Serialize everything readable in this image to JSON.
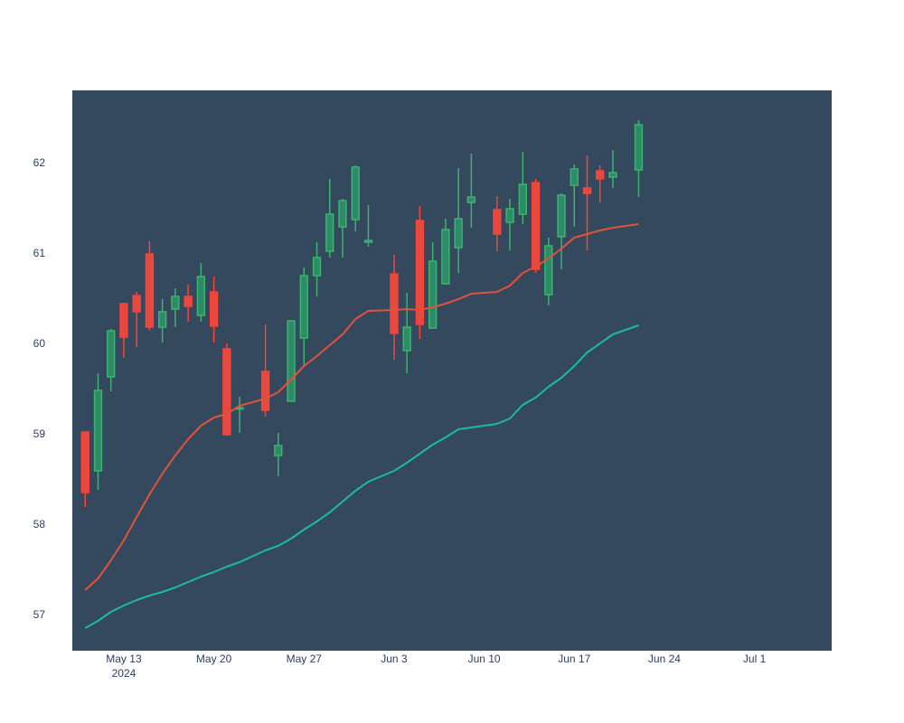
{
  "chart_data": {
    "type": "candlestick",
    "title": "",
    "xlabel": "",
    "ylabel": "",
    "ylim": [
      56.6,
      62.8
    ],
    "xlim": [
      "2024-05-09",
      "2024-07-07"
    ],
    "grid": false,
    "legend": "none",
    "colors": {
      "plot_bg": "#34495e",
      "paper_bg": "#ffffff",
      "increasing": "#2e8b68",
      "increasing_line": "#3cb371",
      "decreasing": "#e5493f",
      "decreasing_line": "#ff4136",
      "ma_short": "#e0533a",
      "ma_long": "#1abc9c",
      "tick_text": "#2a3f5f"
    },
    "y_ticks": [
      "57",
      "58",
      "59",
      "60",
      "61",
      "62"
    ],
    "x_ticks": [
      {
        "date": "2024-05-13",
        "label": "May 13",
        "sublabel": "2024"
      },
      {
        "date": "2024-05-20",
        "label": "May 20",
        "sublabel": ""
      },
      {
        "date": "2024-05-27",
        "label": "May 27",
        "sublabel": ""
      },
      {
        "date": "2024-06-03",
        "label": "Jun 3",
        "sublabel": ""
      },
      {
        "date": "2024-06-10",
        "label": "Jun 10",
        "sublabel": ""
      },
      {
        "date": "2024-06-17",
        "label": "Jun 17",
        "sublabel": ""
      },
      {
        "date": "2024-06-24",
        "label": "Jun 24",
        "sublabel": ""
      },
      {
        "date": "2024-07-01",
        "label": "Jul 1",
        "sublabel": ""
      }
    ],
    "candles": [
      {
        "date": "2024-05-10",
        "open": 59.02,
        "high": 59.02,
        "low": 58.19,
        "close": 58.35
      },
      {
        "date": "2024-05-11",
        "open": 58.59,
        "high": 59.67,
        "low": 58.38,
        "close": 59.48
      },
      {
        "date": "2024-05-12",
        "open": 59.63,
        "high": 60.16,
        "low": 59.47,
        "close": 60.14
      },
      {
        "date": "2024-05-13",
        "open": 60.44,
        "high": 60.45,
        "low": 59.84,
        "close": 60.07
      },
      {
        "date": "2024-05-14",
        "open": 60.53,
        "high": 60.57,
        "low": 59.96,
        "close": 60.35
      },
      {
        "date": "2024-05-15",
        "open": 60.99,
        "high": 61.13,
        "low": 60.14,
        "close": 60.18
      },
      {
        "date": "2024-05-16",
        "open": 60.18,
        "high": 60.49,
        "low": 60.01,
        "close": 60.35
      },
      {
        "date": "2024-05-17",
        "open": 60.38,
        "high": 60.61,
        "low": 60.18,
        "close": 60.52
      },
      {
        "date": "2024-05-18",
        "open": 60.52,
        "high": 60.65,
        "low": 60.24,
        "close": 60.41
      },
      {
        "date": "2024-05-19",
        "open": 60.31,
        "high": 60.89,
        "low": 60.24,
        "close": 60.74
      },
      {
        "date": "2024-05-20",
        "open": 60.57,
        "high": 60.74,
        "low": 60.01,
        "close": 60.19
      },
      {
        "date": "2024-05-21",
        "open": 59.94,
        "high": 60.0,
        "low": 58.98,
        "close": 58.99
      },
      {
        "date": "2024-05-22",
        "open": 59.28,
        "high": 59.41,
        "low": 59.01,
        "close": 59.29
      },
      {
        "date": "2024-05-24",
        "open": 59.69,
        "high": 60.21,
        "low": 59.19,
        "close": 59.26
      },
      {
        "date": "2024-05-25",
        "open": 58.76,
        "high": 59.01,
        "low": 58.53,
        "close": 58.87
      },
      {
        "date": "2024-05-26",
        "open": 59.36,
        "high": 60.26,
        "low": 59.36,
        "close": 60.25
      },
      {
        "date": "2024-05-27",
        "open": 60.06,
        "high": 60.84,
        "low": 59.74,
        "close": 60.75
      },
      {
        "date": "2024-05-28",
        "open": 60.75,
        "high": 61.12,
        "low": 60.52,
        "close": 60.95
      },
      {
        "date": "2024-05-29",
        "open": 61.02,
        "high": 61.82,
        "low": 60.95,
        "close": 61.43
      },
      {
        "date": "2024-05-30",
        "open": 61.29,
        "high": 61.6,
        "low": 60.95,
        "close": 61.58
      },
      {
        "date": "2024-05-31",
        "open": 61.37,
        "high": 61.97,
        "low": 61.24,
        "close": 61.95
      },
      {
        "date": "2024-06-01",
        "open": 61.12,
        "high": 61.53,
        "low": 61.07,
        "close": 61.14
      },
      {
        "date": "2024-06-03",
        "open": 60.77,
        "high": 60.98,
        "low": 59.82,
        "close": 60.11
      },
      {
        "date": "2024-06-04",
        "open": 59.92,
        "high": 60.56,
        "low": 59.67,
        "close": 60.18
      },
      {
        "date": "2024-06-05",
        "open": 61.36,
        "high": 61.52,
        "low": 60.05,
        "close": 60.21
      },
      {
        "date": "2024-06-06",
        "open": 60.17,
        "high": 61.12,
        "low": 60.17,
        "close": 60.91
      },
      {
        "date": "2024-06-07",
        "open": 60.66,
        "high": 61.38,
        "low": 60.65,
        "close": 61.26
      },
      {
        "date": "2024-06-08",
        "open": 61.06,
        "high": 61.94,
        "low": 60.78,
        "close": 61.38
      },
      {
        "date": "2024-06-09",
        "open": 61.56,
        "high": 62.1,
        "low": 61.28,
        "close": 61.62
      },
      {
        "date": "2024-06-11",
        "open": 61.48,
        "high": 61.63,
        "low": 61.02,
        "close": 61.21
      },
      {
        "date": "2024-06-12",
        "open": 61.34,
        "high": 61.6,
        "low": 61.03,
        "close": 61.49
      },
      {
        "date": "2024-06-13",
        "open": 61.43,
        "high": 62.12,
        "low": 61.32,
        "close": 61.76
      },
      {
        "date": "2024-06-14",
        "open": 61.78,
        "high": 61.82,
        "low": 60.78,
        "close": 60.82
      },
      {
        "date": "2024-06-15",
        "open": 60.54,
        "high": 61.17,
        "low": 60.42,
        "close": 61.08
      },
      {
        "date": "2024-06-16",
        "open": 61.18,
        "high": 61.66,
        "low": 60.82,
        "close": 61.64
      },
      {
        "date": "2024-06-17",
        "open": 61.75,
        "high": 61.98,
        "low": 61.29,
        "close": 61.93
      },
      {
        "date": "2024-06-18",
        "open": 61.72,
        "high": 62.08,
        "low": 61.03,
        "close": 61.66
      },
      {
        "date": "2024-06-19",
        "open": 61.91,
        "high": 61.97,
        "low": 61.56,
        "close": 61.82
      },
      {
        "date": "2024-06-20",
        "open": 61.84,
        "high": 62.14,
        "low": 61.72,
        "close": 61.89
      },
      {
        "date": "2024-06-22",
        "open": 61.92,
        "high": 62.47,
        "low": 61.62,
        "close": 62.42
      }
    ],
    "ma_short": {
      "x": [
        "2024-05-10",
        "2024-05-11",
        "2024-05-12",
        "2024-05-13",
        "2024-05-14",
        "2024-05-15",
        "2024-05-16",
        "2024-05-17",
        "2024-05-18",
        "2024-05-19",
        "2024-05-20",
        "2024-05-21",
        "2024-05-22",
        "2024-05-24",
        "2024-05-25",
        "2024-05-26",
        "2024-05-27",
        "2024-05-28",
        "2024-05-29",
        "2024-05-30",
        "2024-05-31",
        "2024-06-01",
        "2024-06-03",
        "2024-06-04",
        "2024-06-05",
        "2024-06-06",
        "2024-06-07",
        "2024-06-08",
        "2024-06-09",
        "2024-06-11",
        "2024-06-12",
        "2024-06-13",
        "2024-06-14",
        "2024-06-15",
        "2024-06-16",
        "2024-06-17",
        "2024-06-18",
        "2024-06-19",
        "2024-06-20",
        "2024-06-22"
      ],
      "y": [
        57.27,
        57.4,
        57.6,
        57.82,
        58.08,
        58.33,
        58.56,
        58.76,
        58.94,
        59.09,
        59.18,
        59.22,
        59.31,
        59.39,
        59.46,
        59.6,
        59.75,
        59.86,
        59.98,
        60.1,
        60.27,
        60.36,
        60.37,
        60.38,
        60.37,
        60.4,
        60.44,
        60.49,
        60.55,
        60.57,
        60.64,
        60.78,
        60.85,
        60.94,
        61.05,
        61.17,
        61.21,
        61.25,
        61.28,
        61.32
      ]
    },
    "ma_long": {
      "x": [
        "2024-05-10",
        "2024-05-11",
        "2024-05-12",
        "2024-05-13",
        "2024-05-14",
        "2024-05-15",
        "2024-05-16",
        "2024-05-17",
        "2024-05-18",
        "2024-05-19",
        "2024-05-20",
        "2024-05-21",
        "2024-05-22",
        "2024-05-24",
        "2024-05-25",
        "2024-05-26",
        "2024-05-27",
        "2024-05-28",
        "2024-05-29",
        "2024-05-30",
        "2024-05-31",
        "2024-06-01",
        "2024-06-03",
        "2024-06-04",
        "2024-06-05",
        "2024-06-06",
        "2024-06-07",
        "2024-06-08",
        "2024-06-09",
        "2024-06-11",
        "2024-06-12",
        "2024-06-13",
        "2024-06-14",
        "2024-06-15",
        "2024-06-16",
        "2024-06-17",
        "2024-06-18",
        "2024-06-19",
        "2024-06-20",
        "2024-06-22"
      ],
      "y": [
        56.85,
        56.93,
        57.03,
        57.1,
        57.16,
        57.21,
        57.25,
        57.3,
        57.36,
        57.42,
        57.47,
        57.53,
        57.58,
        57.71,
        57.76,
        57.84,
        57.94,
        58.03,
        58.13,
        58.25,
        58.37,
        58.47,
        58.59,
        58.68,
        58.78,
        58.88,
        58.96,
        59.05,
        59.07,
        59.11,
        59.17,
        59.32,
        59.4,
        59.52,
        59.62,
        59.75,
        59.9,
        60.0,
        60.1,
        60.2
      ]
    }
  }
}
